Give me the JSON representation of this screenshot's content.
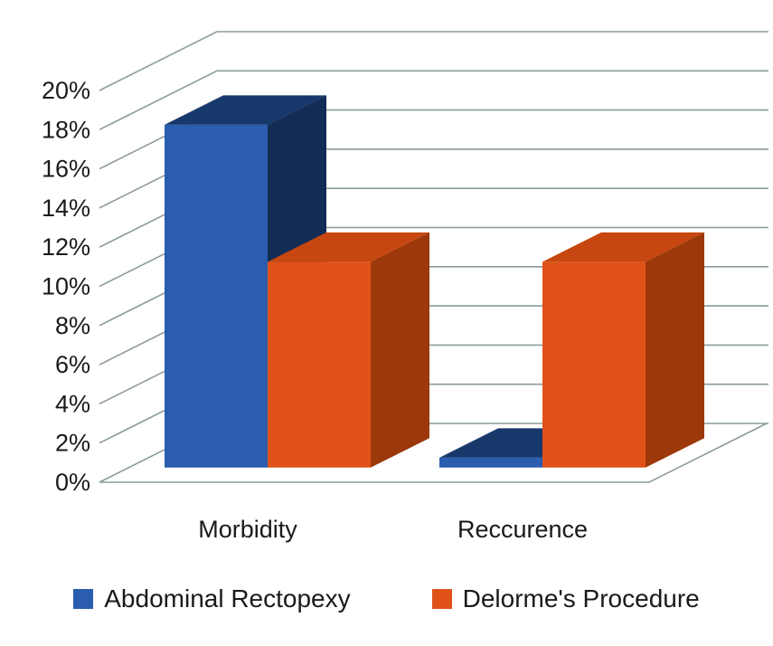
{
  "chart_data": {
    "type": "bar",
    "subtype": "3d-clustered-column",
    "title": "",
    "xlabel": "",
    "ylabel": "",
    "categories": [
      "Morbidity",
      "Reccurence"
    ],
    "series": [
      {
        "name": "Abdominal Rectopexy",
        "color": "#2a5dae",
        "color_top": "#17386b",
        "color_side": "#122c55",
        "values": [
          17.5,
          0.5
        ]
      },
      {
        "name": "Delorme's Procedure",
        "color": "#e0521a",
        "color_top": "#c6470f",
        "color_side": "#9c3809",
        "values": [
          10.5,
          10.5
        ]
      }
    ],
    "ylim": [
      0,
      20
    ],
    "ytick_step": 2,
    "ytick_labels": [
      "0%",
      "2%",
      "4%",
      "6%",
      "8%",
      "10%",
      "12%",
      "14%",
      "16%",
      "18%",
      "20%"
    ],
    "grid": true,
    "grid_color": "#8c9b99",
    "text_color": "#1a1a1a",
    "legend_position": "bottom"
  }
}
